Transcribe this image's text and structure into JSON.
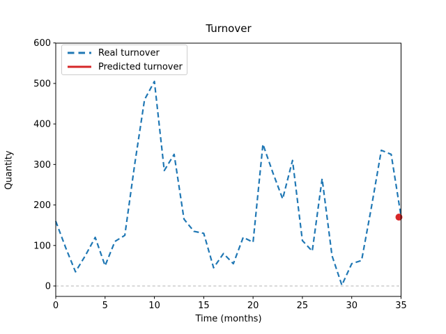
{
  "title": "Turnover",
  "axes": {
    "xlabel": "Time (months)",
    "ylabel": "Quantity"
  },
  "legend": {
    "position": "upper-left",
    "items": [
      {
        "label": "Real turnover",
        "color": "#1f77b4",
        "line_style": "dashed"
      },
      {
        "label": "Predicted turnover",
        "color": "#d62728",
        "line_style": "solid"
      }
    ]
  },
  "chart_data": {
    "type": "line",
    "title": "Turnover",
    "xlabel": "Time (months)",
    "ylabel": "Quantity",
    "xlim": [
      0,
      35
    ],
    "ylim": [
      0,
      600
    ],
    "xticks": [
      0,
      5,
      10,
      15,
      20,
      25,
      30,
      35
    ],
    "yticks": [
      0,
      100,
      200,
      300,
      400,
      500,
      600
    ],
    "grid": false,
    "zero_line": {
      "present": true,
      "color": "#b0b0b0",
      "style": "dashed",
      "y": 0
    },
    "series": [
      {
        "name": "Real turnover",
        "color": "#1f77b4",
        "style": "dashed",
        "x": [
          0,
          1,
          2,
          3,
          4,
          5,
          6,
          7,
          8,
          9,
          10,
          11,
          12,
          13,
          14,
          15,
          16,
          17,
          18,
          19,
          20,
          21,
          22,
          23,
          24,
          25,
          26,
          27,
          28,
          29,
          30,
          31,
          32,
          33,
          34,
          35
        ],
        "y": [
          160,
          95,
          35,
          75,
          120,
          50,
          110,
          125,
          300,
          460,
          505,
          285,
          325,
          165,
          135,
          130,
          45,
          80,
          55,
          120,
          108,
          350,
          280,
          215,
          310,
          112,
          86,
          265,
          75,
          2,
          55,
          63,
          195,
          335,
          325,
          172
        ]
      },
      {
        "name": "Predicted turnover",
        "color": "#d62728",
        "style": "point",
        "marker": "circle",
        "x": [
          35
        ],
        "y": [
          170
        ]
      }
    ]
  }
}
